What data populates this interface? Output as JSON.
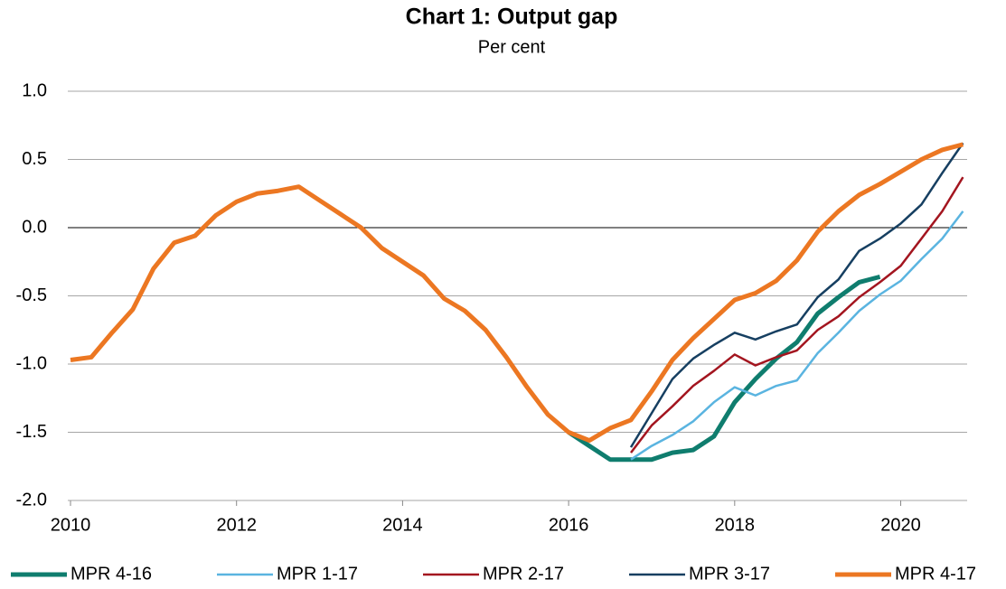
{
  "chart_data": {
    "type": "line",
    "title": "Chart 1: Output gap",
    "subtitle": "Per cent",
    "x": [
      2010,
      2010.25,
      2010.5,
      2010.75,
      2011,
      2011.25,
      2011.5,
      2011.75,
      2012,
      2012.25,
      2012.5,
      2012.75,
      2013,
      2013.25,
      2013.5,
      2013.75,
      2014,
      2014.25,
      2014.5,
      2014.75,
      2015,
      2015.25,
      2015.5,
      2015.75,
      2016,
      2016.25,
      2016.5,
      2016.75,
      2017,
      2017.25,
      2017.5,
      2017.75,
      2018,
      2018.25,
      2018.5,
      2018.75,
      2019,
      2019.25,
      2019.5,
      2019.75,
      2020,
      2020.25,
      2020.5,
      2020.75
    ],
    "series": [
      {
        "name": "MPR 4-16",
        "color": "#0f7d6e",
        "width": 5,
        "values": [
          null,
          null,
          null,
          null,
          null,
          null,
          null,
          null,
          null,
          null,
          null,
          null,
          null,
          null,
          null,
          null,
          null,
          null,
          null,
          null,
          null,
          null,
          null,
          null,
          -1.5,
          -1.6,
          -1.7,
          -1.7,
          -1.7,
          -1.65,
          -1.63,
          -1.53,
          -1.28,
          -1.11,
          -0.96,
          -0.84,
          -0.63,
          -0.51,
          -0.4,
          -0.36,
          null,
          null,
          null,
          null
        ]
      },
      {
        "name": "MPR 1-17",
        "color": "#5ab4e0",
        "width": 2.5,
        "values": [
          null,
          null,
          null,
          null,
          null,
          null,
          null,
          null,
          null,
          null,
          null,
          null,
          null,
          null,
          null,
          null,
          null,
          null,
          null,
          null,
          null,
          null,
          null,
          null,
          null,
          null,
          null,
          -1.7,
          -1.6,
          -1.52,
          -1.42,
          -1.28,
          -1.17,
          -1.23,
          -1.16,
          -1.12,
          -0.92,
          -0.77,
          -0.61,
          -0.49,
          -0.39,
          -0.23,
          -0.08,
          0.12
        ]
      },
      {
        "name": "MPR 2-17",
        "color": "#a3151f",
        "width": 2.5,
        "values": [
          null,
          null,
          null,
          null,
          null,
          null,
          null,
          null,
          null,
          null,
          null,
          null,
          null,
          null,
          null,
          null,
          null,
          null,
          null,
          null,
          null,
          null,
          null,
          null,
          null,
          null,
          null,
          -1.65,
          -1.45,
          -1.31,
          -1.16,
          -1.05,
          -0.93,
          -1.01,
          -0.95,
          -0.9,
          -0.75,
          -0.65,
          -0.51,
          -0.4,
          -0.28,
          -0.08,
          0.12,
          0.37
        ]
      },
      {
        "name": "MPR 3-17",
        "color": "#163f61",
        "width": 2.5,
        "values": [
          null,
          null,
          null,
          null,
          null,
          null,
          null,
          null,
          null,
          null,
          null,
          null,
          null,
          null,
          null,
          null,
          null,
          null,
          null,
          null,
          null,
          null,
          null,
          null,
          null,
          null,
          null,
          -1.61,
          -1.36,
          -1.11,
          -0.96,
          -0.86,
          -0.77,
          -0.82,
          -0.76,
          -0.71,
          -0.51,
          -0.38,
          -0.17,
          -0.08,
          0.03,
          0.17,
          0.4,
          0.62
        ]
      },
      {
        "name": "MPR 4-17",
        "color": "#ec7722",
        "width": 5,
        "values": [
          -0.97,
          -0.95,
          -0.77,
          -0.6,
          -0.3,
          -0.11,
          -0.06,
          0.09,
          0.19,
          0.25,
          0.27,
          0.3,
          0.2,
          0.1,
          0,
          -0.15,
          -0.25,
          -0.35,
          -0.52,
          -0.61,
          -0.75,
          -0.95,
          -1.17,
          -1.37,
          -1.5,
          -1.56,
          -1.47,
          -1.41,
          -1.2,
          -0.97,
          -0.81,
          -0.67,
          -0.53,
          -0.48,
          -0.39,
          -0.24,
          -0.03,
          0.12,
          0.24,
          0.32,
          0.41,
          0.5,
          0.57,
          0.61
        ]
      }
    ],
    "xlim": [
      2010,
      2020.8
    ],
    "xticks": [
      2010,
      2012,
      2014,
      2016,
      2018,
      2020
    ],
    "ylim": [
      -2,
      1
    ],
    "yticks": [
      {
        "value": 1,
        "label": "1.0"
      },
      0.5,
      {
        "value": 0,
        "label": "0.0"
      },
      -0.5,
      {
        "value": -1,
        "label": "-1.0"
      },
      -1.5,
      {
        "value": -2,
        "label": "-2.0"
      }
    ],
    "grid": true,
    "legend": "bottom"
  }
}
